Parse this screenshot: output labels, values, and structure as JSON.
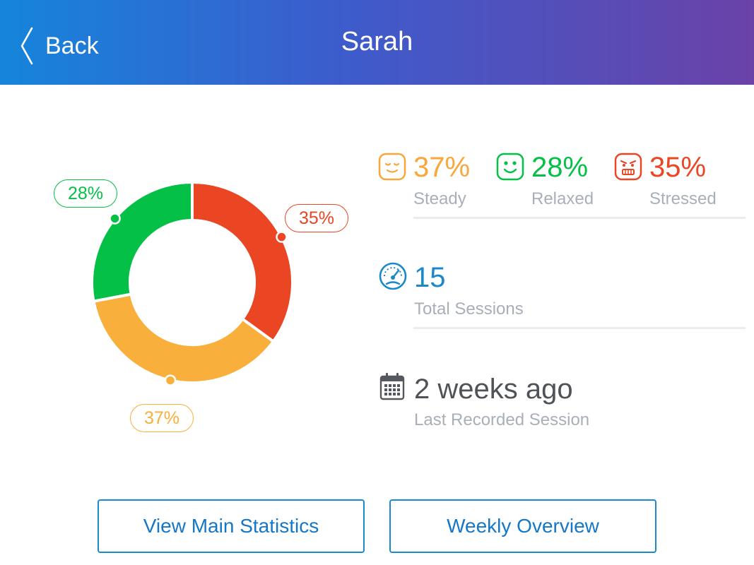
{
  "header": {
    "back_label": "Back",
    "title": "Sarah",
    "gradient_colors": [
      "#1585db",
      "#6a42a8"
    ]
  },
  "chart_data": {
    "type": "pie",
    "variant": "donut",
    "slices": [
      {
        "name": "Stressed",
        "value": 35,
        "label": "35%",
        "color": "#ea4624"
      },
      {
        "name": "Steady",
        "value": 37,
        "label": "37%",
        "color": "#f9af3b"
      },
      {
        "name": "Relaxed",
        "value": 28,
        "label": "28%",
        "color": "#05c047"
      }
    ]
  },
  "moods": [
    {
      "name": "Steady",
      "percent": "37%",
      "label": "Steady",
      "color": "#f9a63a",
      "icon": "calm-face-icon"
    },
    {
      "name": "Relaxed",
      "percent": "28%",
      "label": "Relaxed",
      "color": "#05c047",
      "icon": "smile-face-icon"
    },
    {
      "name": "Stressed",
      "percent": "35%",
      "label": "Stressed",
      "color": "#ea4624",
      "icon": "angry-face-icon"
    }
  ],
  "sessions": {
    "value": "15",
    "label": "Total Sessions",
    "color": "#1a88c9",
    "icon": "speedometer-icon"
  },
  "last_session": {
    "value": "2 weeks ago",
    "label": "Last Recorded Session",
    "color": "#4f5358",
    "icon": "calendar-icon"
  },
  "buttons": {
    "main_stats": "View Main Statistics",
    "weekly": "Weekly Overview"
  }
}
